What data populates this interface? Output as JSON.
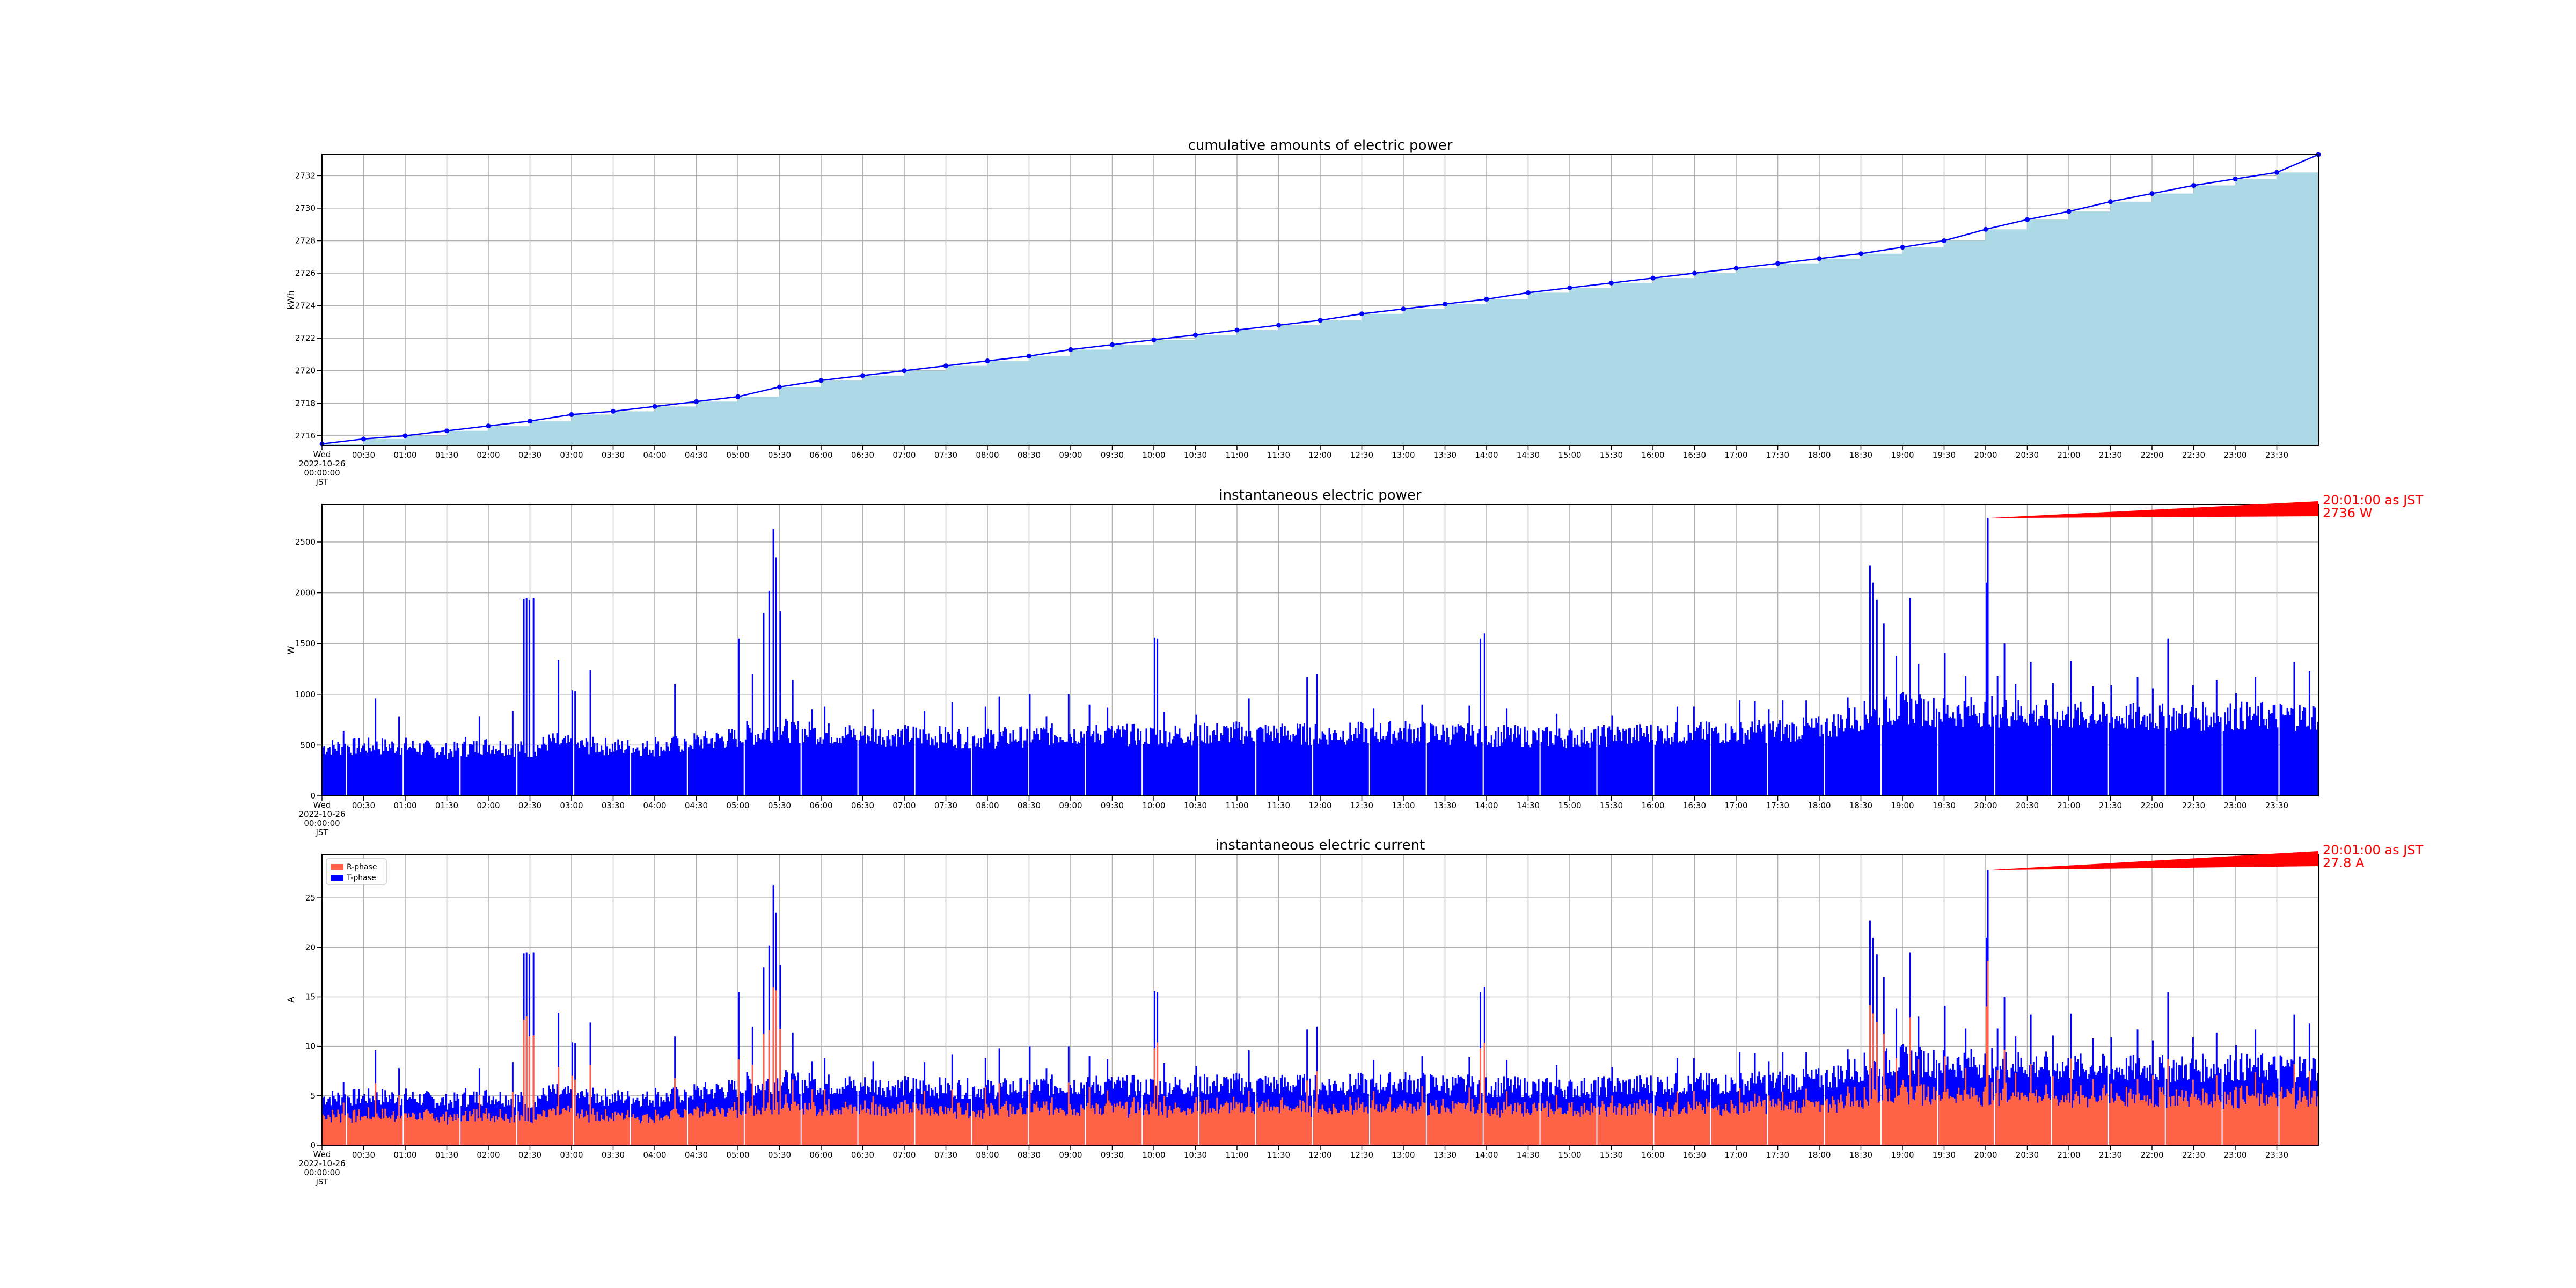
{
  "chart_data": [
    {
      "type": "area",
      "title": "cumulative amounts of electric power",
      "ylabel": "kWh",
      "ylim": [
        2715.4,
        2733.3
      ],
      "yticks": [
        2716,
        2718,
        2720,
        2722,
        2724,
        2726,
        2728,
        2730,
        2732
      ],
      "ytick_labels": [
        "2716",
        "2718",
        "2720",
        "2722",
        "2724",
        "2726",
        "2728",
        "2730",
        "2732"
      ],
      "grid": true,
      "fill_color": "#add8e6",
      "line_color": "#0000ff",
      "x_unit": "minutes since 2022-10-26 00:00:00 JST",
      "x": [
        0,
        30,
        60,
        90,
        120,
        150,
        180,
        210,
        240,
        270,
        300,
        330,
        360,
        390,
        420,
        450,
        480,
        510,
        540,
        570,
        600,
        630,
        660,
        690,
        720,
        750,
        780,
        810,
        840,
        870,
        900,
        930,
        960,
        990,
        1020,
        1050,
        1080,
        1110,
        1140,
        1170,
        1200,
        1230,
        1260,
        1290,
        1320,
        1350,
        1380,
        1410
      ],
      "values": [
        2715.5,
        2715.8,
        2716.0,
        2716.3,
        2716.6,
        2716.9,
        2717.3,
        2717.5,
        2717.8,
        2718.1,
        2718.4,
        2719.0,
        2719.4,
        2719.7,
        2720.0,
        2720.3,
        2720.6,
        2720.9,
        2721.3,
        2721.6,
        2721.9,
        2722.2,
        2722.5,
        2722.8,
        2723.1,
        2723.5,
        2723.8,
        2724.1,
        2724.4,
        2724.8,
        2725.1,
        2725.4,
        2725.7,
        2726.0,
        2726.3,
        2726.6,
        2726.9,
        2727.2,
        2727.6,
        2728.0,
        2728.7,
        2729.3,
        2729.8,
        2730.4,
        2730.9,
        2731.4,
        2731.8,
        2732.2
      ]
    },
    {
      "type": "bar",
      "title": "instantaneous electric power",
      "ylabel": "W",
      "ylim": [
        0,
        2870
      ],
      "yticks": [
        0,
        500,
        1000,
        1500,
        2000,
        2500
      ],
      "ytick_labels": [
        "0",
        "500",
        "1000",
        "1500",
        "2000",
        "2500"
      ],
      "grid": true,
      "bar_color": "#0000ff",
      "x_unit": "minutes since 2022-10-26 00:00:00 JST",
      "annotation": {
        "x": 1201,
        "y": 2736,
        "text_line1": "20:01:00 as JST",
        "text_line2": "2736 W",
        "color": "#ff0000"
      },
      "baseline": [
        [
          0,
          500
        ],
        [
          60,
          510
        ],
        [
          90,
          460
        ],
        [
          120,
          520
        ],
        [
          150,
          470
        ],
        [
          165,
          560
        ],
        [
          180,
          520
        ],
        [
          240,
          490
        ],
        [
          270,
          560
        ],
        [
          300,
          600
        ],
        [
          330,
          680
        ],
        [
          360,
          640
        ],
        [
          420,
          620
        ],
        [
          480,
          590
        ],
        [
          540,
          640
        ],
        [
          600,
          620
        ],
        [
          660,
          650
        ],
        [
          720,
          630
        ],
        [
          780,
          660
        ],
        [
          840,
          620
        ],
        [
          900,
          600
        ],
        [
          960,
          640
        ],
        [
          1020,
          650
        ],
        [
          1080,
          690
        ],
        [
          1110,
          820
        ],
        [
          1140,
          900
        ],
        [
          1170,
          860
        ],
        [
          1200,
          870
        ],
        [
          1260,
          820
        ],
        [
          1320,
          800
        ],
        [
          1380,
          820
        ],
        [
          1440,
          820
        ]
      ],
      "spikes": [
        [
          15,
          640
        ],
        [
          38,
          960
        ],
        [
          55,
          780
        ],
        [
          103,
          580
        ],
        [
          113,
          780
        ],
        [
          137,
          840
        ],
        [
          145,
          1940
        ],
        [
          147,
          1950
        ],
        [
          149,
          1930
        ],
        [
          152,
          1950
        ],
        [
          170,
          1340
        ],
        [
          180,
          1040
        ],
        [
          182,
          1030
        ],
        [
          193,
          1240
        ],
        [
          240,
          580
        ],
        [
          254,
          1100
        ],
        [
          300,
          1550
        ],
        [
          306,
          740
        ],
        [
          310,
          1200
        ],
        [
          318,
          1800
        ],
        [
          322,
          2020
        ],
        [
          325,
          2630
        ],
        [
          327,
          2350
        ],
        [
          330,
          1820
        ],
        [
          339,
          1140
        ],
        [
          353,
          850
        ],
        [
          362,
          880
        ],
        [
          386,
          770
        ],
        [
          397,
          850
        ],
        [
          434,
          840
        ],
        [
          454,
          920
        ],
        [
          478,
          880
        ],
        [
          488,
          980
        ],
        [
          510,
          1000
        ],
        [
          522,
          780
        ],
        [
          538,
          1000
        ],
        [
          553,
          900
        ],
        [
          566,
          870
        ],
        [
          600,
          1560
        ],
        [
          602,
          1550
        ],
        [
          607,
          830
        ],
        [
          630,
          800
        ],
        [
          668,
          960
        ],
        [
          710,
          1170
        ],
        [
          717,
          1200
        ],
        [
          758,
          860
        ],
        [
          793,
          900
        ],
        [
          827,
          890
        ],
        [
          835,
          1550
        ],
        [
          838,
          1600
        ],
        [
          854,
          860
        ],
        [
          890,
          810
        ],
        [
          930,
          790
        ],
        [
          977,
          880
        ],
        [
          989,
          880
        ],
        [
          1022,
          940
        ],
        [
          1033,
          930
        ],
        [
          1043,
          850
        ],
        [
          1053,
          940
        ],
        [
          1070,
          940
        ],
        [
          1100,
          970
        ],
        [
          1116,
          2270
        ],
        [
          1118,
          2100
        ],
        [
          1121,
          1930
        ],
        [
          1126,
          1700
        ],
        [
          1135,
          1380
        ],
        [
          1145,
          1950
        ],
        [
          1151,
          1300
        ],
        [
          1165,
          1700
        ],
        [
          1170,
          1410
        ],
        [
          1185,
          1180
        ],
        [
          1200,
          2100
        ],
        [
          1201,
          2736
        ],
        [
          1208,
          1180
        ],
        [
          1213,
          1500
        ],
        [
          1221,
          1100
        ],
        [
          1232,
          1320
        ],
        [
          1248,
          1110
        ],
        [
          1261,
          1330
        ],
        [
          1277,
          1080
        ],
        [
          1290,
          1090
        ],
        [
          1309,
          1170
        ],
        [
          1320,
          1060
        ],
        [
          1331,
          1550
        ],
        [
          1349,
          1090
        ],
        [
          1366,
          1140
        ],
        [
          1380,
          1010
        ],
        [
          1394,
          1170
        ],
        [
          1422,
          1320
        ],
        [
          1433,
          1230
        ]
      ]
    },
    {
      "type": "bar",
      "title": "instantaneous electric current",
      "ylabel": "A",
      "ylim": [
        0,
        29.4
      ],
      "yticks": [
        0,
        5,
        10,
        15,
        20,
        25
      ],
      "ytick_labels": [
        "0",
        "5",
        "10",
        "15",
        "20",
        "25"
      ],
      "grid": true,
      "legend": "top-left",
      "series": [
        {
          "name": "R-phase",
          "color": "#ff6347"
        },
        {
          "name": "T-phase",
          "color": "#0000ff"
        }
      ],
      "x_unit": "minutes since 2022-10-26 00:00:00 JST",
      "annotation": {
        "x": 1201,
        "y": 27.8,
        "text_line1": "20:01:00 as JST",
        "text_line2": "27.8 A",
        "color": "#ff0000"
      },
      "r_fraction": 0.62
    }
  ],
  "x_axis": {
    "first_tick_lines": [
      "Wed",
      "2022-10-26",
      "00:00:00",
      "JST"
    ],
    "tick_labels": [
      "00:30",
      "01:00",
      "01:30",
      "02:00",
      "02:30",
      "03:00",
      "03:30",
      "04:00",
      "04:30",
      "05:00",
      "05:30",
      "06:00",
      "06:30",
      "07:00",
      "07:30",
      "08:00",
      "08:30",
      "09:00",
      "09:30",
      "10:00",
      "10:30",
      "11:00",
      "11:30",
      "12:00",
      "12:30",
      "13:00",
      "13:30",
      "14:00",
      "14:30",
      "15:00",
      "15:30",
      "16:00",
      "16:30",
      "17:00",
      "17:30",
      "18:00",
      "18:30",
      "19:00",
      "19:30",
      "20:00",
      "20:30",
      "21:00",
      "21:30",
      "22:00",
      "22:30",
      "23:00",
      "23:30"
    ],
    "range_minutes": [
      0,
      1440
    ]
  }
}
